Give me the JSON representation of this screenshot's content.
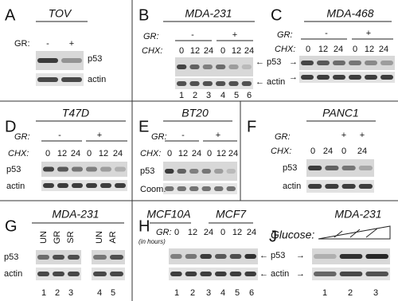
{
  "panels": [
    {
      "letter": "A",
      "title": "TOV",
      "gr_label": "GR:",
      "gr": [
        "-",
        "+"
      ],
      "rows": [
        "p53",
        "actin"
      ]
    },
    {
      "letter": "B",
      "title": "MDA-231",
      "gr_label": "GR:",
      "gr": [
        "-",
        "+"
      ],
      "chx_label": "CHX:",
      "chx": [
        "0",
        "12",
        "24",
        "0",
        "12",
        "24"
      ],
      "rows": [
        "← p53",
        "← actin"
      ],
      "lanes": [
        "1",
        "2",
        "3",
        "4",
        "5",
        "6"
      ]
    },
    {
      "letter": "C",
      "title": "MDA-468",
      "gr_label": "GR:",
      "gr": [
        "-",
        "+"
      ],
      "chx_label": "CHX:",
      "chx": [
        "0",
        "12",
        "24",
        "0",
        "12",
        "24"
      ],
      "rows": [
        "→",
        "→"
      ]
    },
    {
      "letter": "D",
      "title": "T47D",
      "gr_label": "GR:",
      "gr": [
        "-",
        "+"
      ],
      "chx_label": "CHX:",
      "chx": [
        "0",
        "12",
        "24",
        "0",
        "12",
        "24"
      ],
      "rows": [
        "p53",
        "actin"
      ]
    },
    {
      "letter": "E",
      "title": "BT20",
      "gr_label": "GR:",
      "gr": [
        "-",
        "+"
      ],
      "chx_label": "CHX:",
      "chx": [
        "0",
        "12",
        "24",
        "0",
        "12",
        "24"
      ],
      "rows": [
        "p53",
        "Coom."
      ]
    },
    {
      "letter": "F",
      "title": "PANC1",
      "gr_label": "GR:",
      "gr": [
        "+",
        "+"
      ],
      "chx_label": "CHX:",
      "chx": [
        "0",
        "24",
        "0",
        "24"
      ],
      "rows": [
        "p53",
        "actin"
      ]
    },
    {
      "letter": "G",
      "title": "MDA-231",
      "treatments": [
        "UN",
        "GR",
        "SR",
        "UN",
        "AR"
      ],
      "rows": [
        "p53",
        "actin"
      ],
      "lanes": [
        "1",
        "2",
        "3",
        "4",
        "5"
      ]
    },
    {
      "letter": "H",
      "titles": [
        "MCF10A",
        "MCF7"
      ],
      "gr_label": "GR:",
      "gr_note": "(in hours)",
      "chx": [
        "0",
        "12",
        "24",
        "0",
        "12",
        "24"
      ],
      "rows": [
        "← p53",
        "← actin"
      ],
      "lanes": [
        "1",
        "2",
        "3",
        "4",
        "5",
        "6"
      ]
    },
    {
      "letter": "J",
      "title": "MDA-231",
      "glucose_label": "Glucose:",
      "rows": [
        "→",
        "→"
      ],
      "lanes": [
        "1",
        "2",
        "3"
      ]
    }
  ]
}
